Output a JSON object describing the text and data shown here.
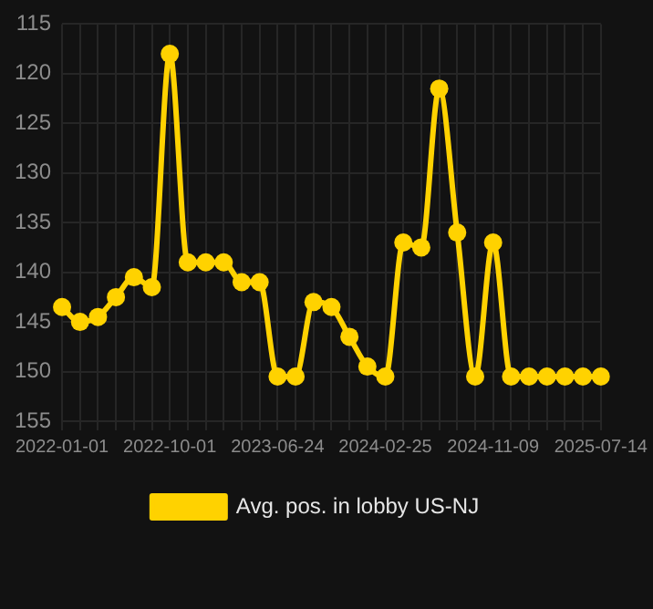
{
  "chart_data": {
    "type": "line",
    "categories": [
      "2022-01-01",
      null,
      null,
      null,
      null,
      null,
      "2022-10-01",
      null,
      null,
      null,
      null,
      null,
      "2023-06-24",
      null,
      null,
      null,
      null,
      null,
      "2024-02-25",
      null,
      null,
      null,
      null,
      null,
      "2024-11-09",
      null,
      null,
      null,
      null,
      null,
      "2025-07-14"
    ],
    "series": [
      {
        "name": "Avg. pos. in lobby US-NJ",
        "color": "#ffd200",
        "values": [
          143.5,
          145,
          144.5,
          142.5,
          140.5,
          141.5,
          118,
          139,
          139,
          139,
          141,
          141,
          150.5,
          150.5,
          143,
          143.5,
          146.5,
          149.5,
          150.5,
          137,
          137.5,
          121.5,
          136,
          150.5,
          137,
          150.5,
          150.5,
          150.5,
          150.5,
          150.5,
          150.5
        ]
      }
    ],
    "ylim": [
      155,
      115
    ],
    "yticks": [
      115,
      120,
      125,
      130,
      135,
      140,
      145,
      150,
      155
    ],
    "grid": true,
    "legend": "bottom",
    "marker": "circle",
    "line_style": "solid"
  }
}
